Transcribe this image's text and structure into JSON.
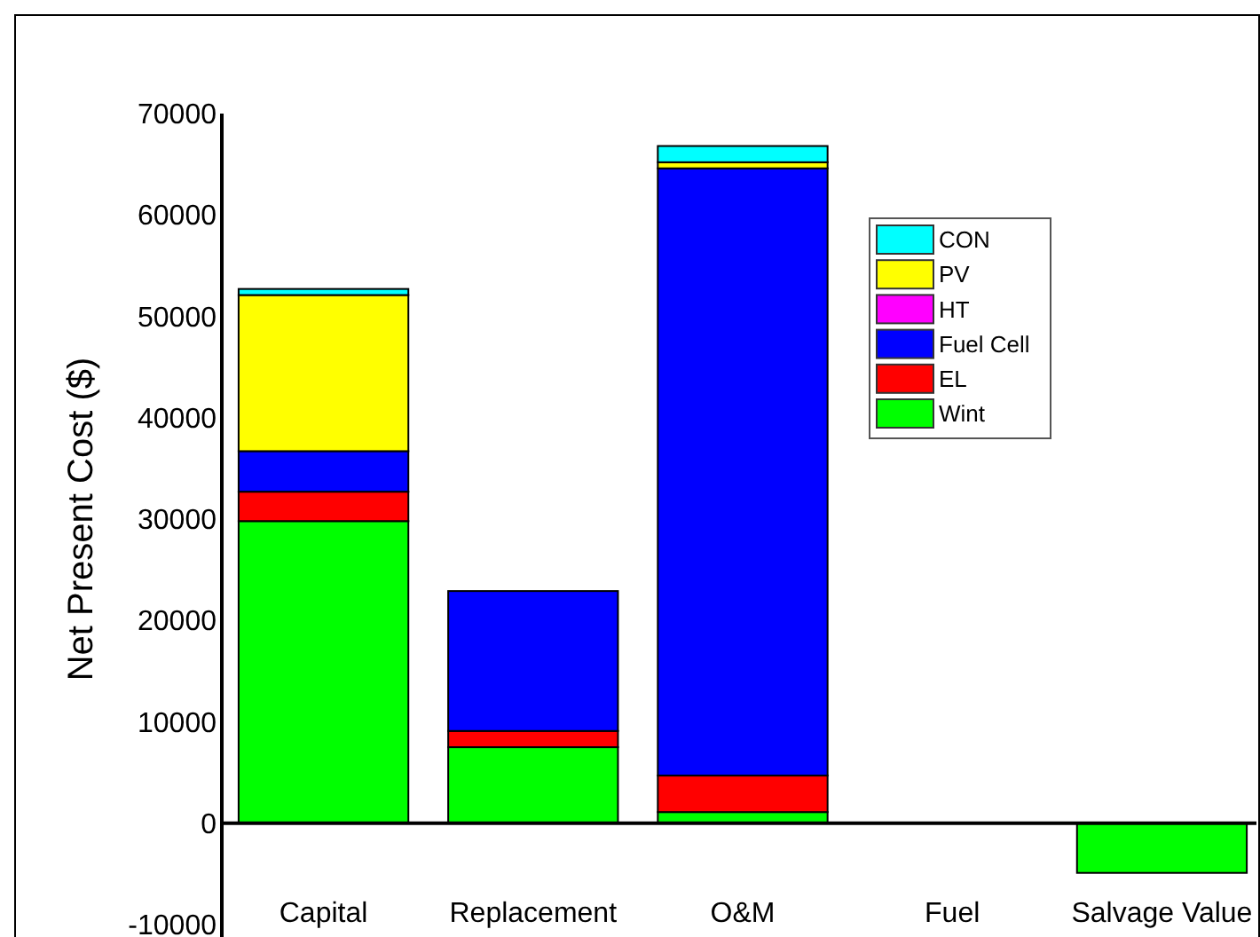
{
  "chart_data": {
    "type": "bar",
    "stacked": true,
    "ylabel": "Net Present Cost ($)",
    "categories": [
      "Capital",
      "Replacement",
      "O&M",
      "Fuel",
      "Salvage Value"
    ],
    "series": [
      {
        "name": "Wint",
        "color": "#00ff00",
        "values": [
          29800,
          7500,
          1100,
          0,
          -4900
        ]
      },
      {
        "name": "EL",
        "color": "#ff0000",
        "values": [
          2900,
          1600,
          3600,
          0,
          0
        ]
      },
      {
        "name": "Fuel Cell",
        "color": "#0000ff",
        "values": [
          4000,
          13800,
          59900,
          0,
          0
        ]
      },
      {
        "name": "HT",
        "color": "#ff00ff",
        "values": [
          0,
          0,
          0,
          0,
          0
        ]
      },
      {
        "name": "PV",
        "color": "#ffff00",
        "values": [
          15400,
          0,
          600,
          0,
          0
        ]
      },
      {
        "name": "CON",
        "color": "#00ffff",
        "values": [
          600,
          0,
          1600,
          0,
          0
        ]
      }
    ],
    "ylim": [
      -10000,
      70000
    ],
    "yticks": [
      -10000,
      0,
      10000,
      20000,
      30000,
      40000,
      50000,
      60000,
      70000
    ],
    "legend": "top right"
  }
}
